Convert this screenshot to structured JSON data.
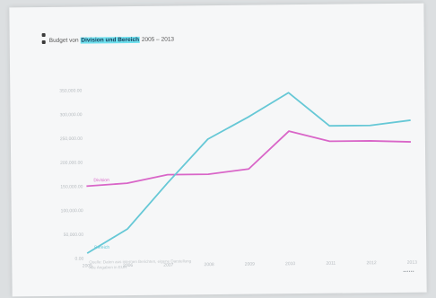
{
  "title": {
    "prefix": "Budget von",
    "highlight": "Division und Bereich",
    "suffix": "2005 – 2013"
  },
  "chart_data": {
    "type": "line",
    "x": [
      "2005",
      "2006",
      "2007",
      "2008",
      "2009",
      "2010",
      "2011",
      "2012",
      "2013"
    ],
    "ylim": [
      0,
      400000
    ],
    "y_ticks": [
      {
        "value": 350000,
        "label": "350,000.00"
      },
      {
        "value": 300000,
        "label": "300,000.00"
      },
      {
        "value": 250000,
        "label": "250,000.00"
      },
      {
        "value": 200000,
        "label": "200,000.00"
      },
      {
        "value": 150000,
        "label": "150,000.00"
      },
      {
        "value": 100000,
        "label": "100,000.00"
      },
      {
        "value": 50000,
        "label": "50,000.00"
      },
      {
        "value": 0,
        "label": "0.00"
      }
    ],
    "series": [
      {
        "name": "Division",
        "color": "#d966c8",
        "values": [
          150000,
          155000,
          172000,
          172000,
          182000,
          260000,
          238000,
          238000,
          235000
        ]
      },
      {
        "name": "Bereich",
        "color": "#66c8d6",
        "values": [
          10000,
          60000,
          155000,
          245000,
          290000,
          340000,
          270000,
          270000,
          280000
        ]
      }
    ],
    "grid": false,
    "legend": "inline-left"
  },
  "footnote": {
    "line1": "Quelle: Daten aus internen Berichten, eigene Darstellung",
    "line2": "Alle Angaben in EUR"
  },
  "source_mark": "▪▪▪▪▪▪"
}
